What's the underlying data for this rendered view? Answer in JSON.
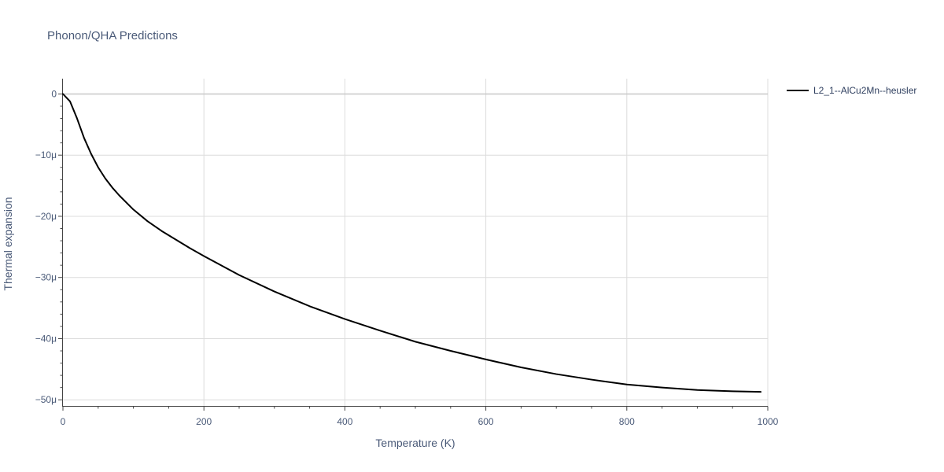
{
  "chart_data": {
    "type": "line",
    "title": "Phonon/QHA Predictions",
    "xlabel": "Temperature (K)",
    "ylabel": "Thermal expansion",
    "xlim": [
      0,
      1000
    ],
    "ylim": [
      -51,
      2.5
    ],
    "x_ticks": [
      0,
      200,
      400,
      600,
      800,
      1000
    ],
    "x_tick_labels": [
      "0",
      "200",
      "400",
      "600",
      "800",
      "1000"
    ],
    "y_ticks": [
      0,
      -10,
      -20,
      -30,
      -40,
      -50
    ],
    "y_tick_labels": [
      "0",
      "−10μ",
      "−20μ",
      "−30μ",
      "−40μ",
      "−50μ"
    ],
    "y_unit_note": "values in μ (1e-6)",
    "grid": true,
    "legend_position": "top-right",
    "series": [
      {
        "name": "L2_1--AlCu2Mn--heusler",
        "color": "#000000",
        "x": [
          0,
          10,
          20,
          30,
          40,
          50,
          60,
          70,
          80,
          100,
          120,
          140,
          160,
          180,
          200,
          250,
          300,
          350,
          400,
          450,
          500,
          550,
          600,
          650,
          700,
          750,
          800,
          850,
          900,
          950,
          990
        ],
        "y": [
          0,
          -1.2,
          -4.0,
          -7.2,
          -9.8,
          -12.0,
          -13.8,
          -15.3,
          -16.6,
          -18.9,
          -20.8,
          -22.4,
          -23.8,
          -25.2,
          -26.5,
          -29.6,
          -32.3,
          -34.7,
          -36.8,
          -38.7,
          -40.5,
          -42.0,
          -43.4,
          -44.7,
          -45.8,
          -46.7,
          -47.5,
          -48.0,
          -48.4,
          -48.6,
          -48.7
        ]
      }
    ]
  }
}
